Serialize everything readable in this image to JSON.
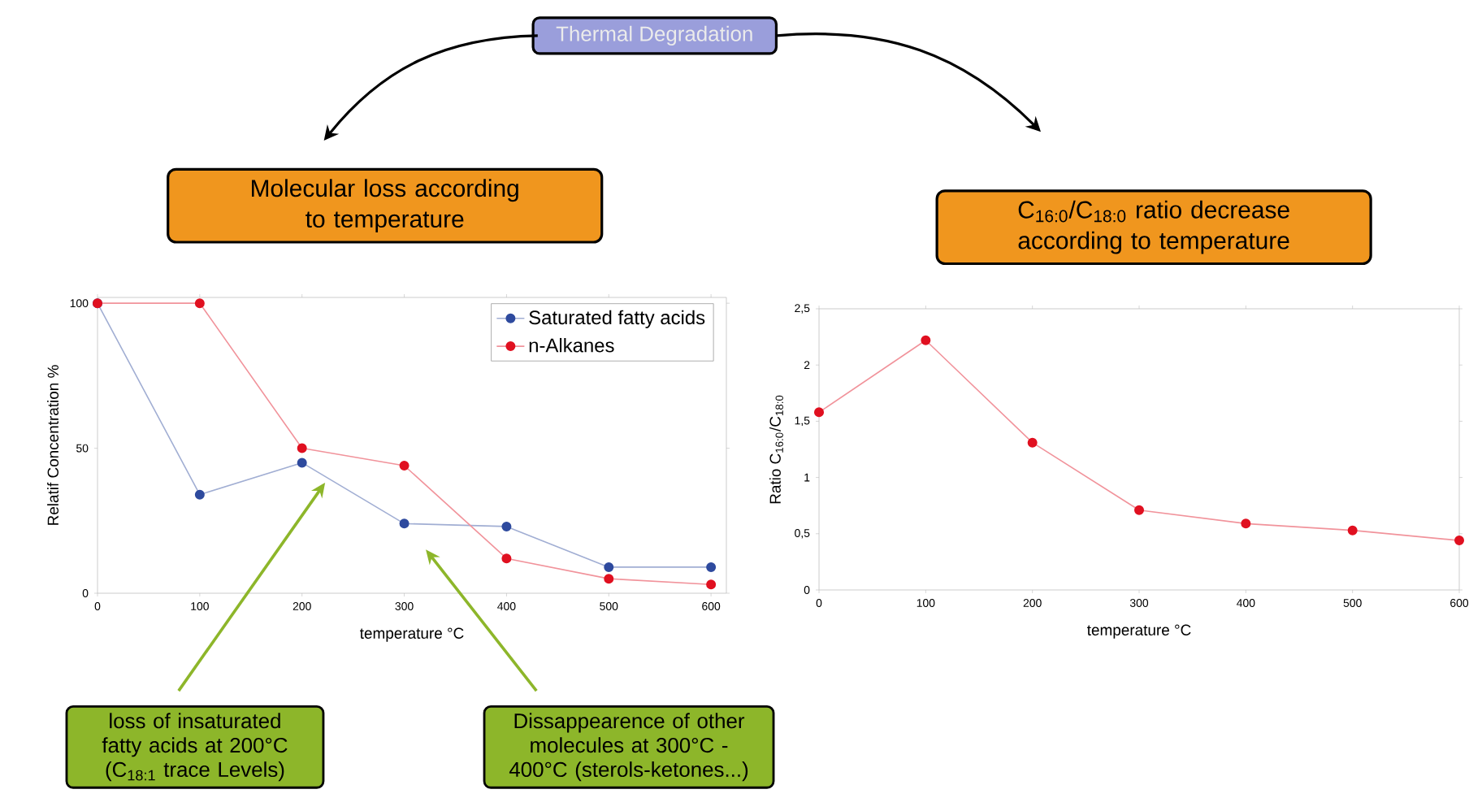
{
  "chart_data": [
    {
      "type": "line",
      "title": "Molecular loss according to temperature",
      "xlabel": "temperature °C",
      "ylabel": "Relatif Concentration %",
      "x": [
        0,
        100,
        200,
        300,
        400,
        500,
        600
      ],
      "series": [
        {
          "name": "Saturated fatty acids",
          "color": "#2e4a9e",
          "values": [
            100,
            34,
            45,
            24,
            23,
            9,
            9
          ]
        },
        {
          "name": "n-Alkanes",
          "color": "#e01020",
          "values": [
            100,
            100,
            50,
            44,
            12,
            5,
            3
          ]
        }
      ],
      "xlim": [
        0,
        615
      ],
      "ylim": [
        0,
        102
      ],
      "xticks": [
        0,
        100,
        200,
        300,
        400,
        500,
        600
      ],
      "yticks": [
        0,
        50,
        100
      ],
      "legend": "top right",
      "marker": "circle",
      "grid": false,
      "annotations": [
        "Thermal Degradation",
        "loss of insaturated fatty acids at 200°C (C$_{18:1}$ trace Levels)",
        "Dissappearence of other molecules at 300°C -400°C (sterols-ketones...)"
      ]
    },
    {
      "type": "line",
      "title": "C$_{16:0}$/C$_{18:0}$ ratio decrease according to temperature",
      "xlabel": "temperature °C",
      "ylabel": "Ratio C$_{16:0}$/C$_{18:0}$",
      "x": [
        0,
        100,
        200,
        300,
        400,
        500,
        600
      ],
      "series": [
        {
          "color": "#e01020",
          "values": [
            1.58,
            2.22,
            1.31,
            0.71,
            0.59,
            0.53,
            0.44
          ]
        }
      ],
      "xlim": [
        0,
        600
      ],
      "ylim": [
        0,
        2.5
      ],
      "xticks": [
        0,
        100,
        200,
        300,
        400,
        500,
        600
      ],
      "yticks": [
        0,
        {
          "value": 0.5,
          "label": "0,5"
        },
        1,
        {
          "value": 1.5,
          "label": "1,5"
        },
        2,
        {
          "value": 2.5,
          "label": "2,5"
        }
      ],
      "marker": "circle",
      "grid": false
    }
  ]
}
